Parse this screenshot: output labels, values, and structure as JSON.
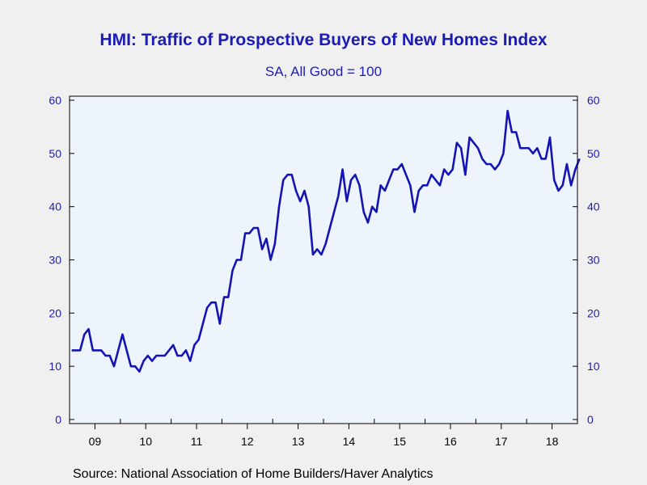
{
  "chart_data": {
    "type": "line",
    "title": "HMI: Traffic of Prospective Buyers of New Homes Index",
    "subtitle": "SA, All Good = 100",
    "source": "Source:  National Association of Home Builders/Haver Analytics",
    "ylim": [
      0,
      60
    ],
    "y_ticks": [
      0,
      10,
      20,
      30,
      40,
      50,
      60
    ],
    "y_tick_labels": [
      "0",
      "10",
      "20",
      "30",
      "40",
      "50",
      "60"
    ],
    "x_tick_labels": [
      "09",
      "10",
      "11",
      "12",
      "13",
      "14",
      "15",
      "16",
      "17",
      "18"
    ],
    "grid": false,
    "colors": {
      "line": "#1414b4",
      "axis_text": "#1c1cb4",
      "plot_bg": "#eef4fc",
      "frame": "#000000"
    },
    "series": [
      {
        "start": "2009-01",
        "frequency": "monthly",
        "values": [
          13,
          13,
          13,
          16,
          17,
          13,
          13,
          13,
          12,
          12,
          10,
          13,
          16,
          13,
          10,
          10,
          9,
          11,
          12,
          11,
          12,
          12,
          12,
          13,
          14,
          12,
          12,
          13,
          11,
          14,
          15,
          18,
          21,
          22,
          22,
          18,
          23,
          23,
          28,
          30,
          30,
          35,
          35,
          36,
          36,
          32,
          34,
          30,
          33,
          40,
          45,
          46,
          46,
          43,
          41,
          43,
          40,
          31,
          32,
          31,
          33,
          36,
          39,
          42,
          47,
          41,
          45,
          46,
          44,
          39,
          37,
          40,
          39,
          44,
          43,
          45,
          47,
          47,
          48,
          46,
          44,
          39,
          43,
          44,
          44,
          46,
          45,
          44,
          47,
          46,
          47,
          52,
          51,
          46,
          53,
          52,
          51,
          49,
          48,
          48,
          47,
          48,
          50,
          58,
          54,
          54,
          51,
          51,
          51,
          50,
          51,
          49,
          49,
          53,
          45,
          43,
          44,
          48,
          44,
          47,
          49
        ]
      }
    ]
  }
}
